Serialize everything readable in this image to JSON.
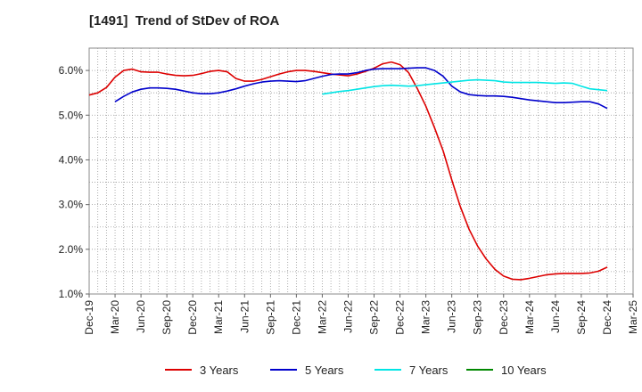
{
  "chart_data": {
    "type": "line",
    "title": "[1491]  Trend of StDev of ROA",
    "xlabel": "",
    "ylabel": "",
    "ylim": [
      1.0,
      6.5
    ],
    "yticks": [
      "1.0%",
      "2.0%",
      "3.0%",
      "4.0%",
      "5.0%",
      "6.0%"
    ],
    "x_tick_labels": [
      "Dec-19",
      "Mar-20",
      "Jun-20",
      "Sep-20",
      "Dec-20",
      "Mar-21",
      "Jun-21",
      "Sep-21",
      "Dec-21",
      "Mar-22",
      "Jun-22",
      "Sep-22",
      "Dec-22",
      "Mar-23",
      "Jun-23",
      "Sep-23",
      "Dec-23",
      "Mar-24",
      "Jun-24",
      "Sep-24",
      "Dec-24",
      "Mar-25"
    ],
    "grid": true,
    "legend_position": "bottom",
    "series": [
      {
        "name": "3 Years",
        "color": "#dd0000",
        "values": [
          [
            "Dec-19",
            5.45
          ],
          [
            "Jan-20",
            5.5
          ],
          [
            "Feb-20",
            5.62
          ],
          [
            "Mar-20",
            5.85
          ],
          [
            "Apr-20",
            6.0
          ],
          [
            "May-20",
            6.03
          ],
          [
            "Jun-20",
            5.97
          ],
          [
            "Jul-20",
            5.96
          ],
          [
            "Aug-20",
            5.96
          ],
          [
            "Sep-20",
            5.92
          ],
          [
            "Oct-20",
            5.89
          ],
          [
            "Nov-20",
            5.88
          ],
          [
            "Dec-20",
            5.89
          ],
          [
            "Jan-21",
            5.93
          ],
          [
            "Feb-21",
            5.98
          ],
          [
            "Mar-21",
            6.0
          ],
          [
            "Apr-21",
            5.97
          ],
          [
            "May-21",
            5.82
          ],
          [
            "Jun-21",
            5.76
          ],
          [
            "Jul-21",
            5.76
          ],
          [
            "Aug-21",
            5.8
          ],
          [
            "Sep-21",
            5.86
          ],
          [
            "Oct-21",
            5.92
          ],
          [
            "Nov-21",
            5.97
          ],
          [
            "Dec-21",
            6.0
          ],
          [
            "Jan-22",
            6.0
          ],
          [
            "Feb-22",
            5.98
          ],
          [
            "Mar-22",
            5.95
          ],
          [
            "Apr-22",
            5.92
          ],
          [
            "May-22",
            5.9
          ],
          [
            "Jun-22",
            5.88
          ],
          [
            "Jul-22",
            5.92
          ],
          [
            "Aug-22",
            5.98
          ],
          [
            "Sep-22",
            6.05
          ],
          [
            "Oct-22",
            6.15
          ],
          [
            "Nov-22",
            6.19
          ],
          [
            "Dec-22",
            6.13
          ],
          [
            "Jan-23",
            5.95
          ],
          [
            "Feb-23",
            5.6
          ],
          [
            "Mar-23",
            5.2
          ],
          [
            "Apr-23",
            4.72
          ],
          [
            "May-23",
            4.2
          ],
          [
            "Jun-23",
            3.55
          ],
          [
            "Jul-23",
            2.95
          ],
          [
            "Aug-23",
            2.45
          ],
          [
            "Sep-23",
            2.07
          ],
          [
            "Oct-23",
            1.78
          ],
          [
            "Nov-23",
            1.55
          ],
          [
            "Dec-23",
            1.4
          ],
          [
            "Jan-24",
            1.33
          ],
          [
            "Feb-24",
            1.32
          ],
          [
            "Mar-24",
            1.35
          ],
          [
            "Apr-24",
            1.39
          ],
          [
            "May-24",
            1.43
          ],
          [
            "Jun-24",
            1.45
          ],
          [
            "Jul-24",
            1.46
          ],
          [
            "Aug-24",
            1.46
          ],
          [
            "Sep-24",
            1.46
          ],
          [
            "Oct-24",
            1.47
          ],
          [
            "Nov-24",
            1.51
          ],
          [
            "Dec-24",
            1.6
          ]
        ]
      },
      {
        "name": "5 Years",
        "color": "#0000cc",
        "values": [
          [
            "Mar-20",
            5.3
          ],
          [
            "Apr-20",
            5.42
          ],
          [
            "May-20",
            5.52
          ],
          [
            "Jun-20",
            5.58
          ],
          [
            "Jul-20",
            5.61
          ],
          [
            "Aug-20",
            5.61
          ],
          [
            "Sep-20",
            5.6
          ],
          [
            "Oct-20",
            5.58
          ],
          [
            "Nov-20",
            5.54
          ],
          [
            "Dec-20",
            5.5
          ],
          [
            "Jan-21",
            5.48
          ],
          [
            "Feb-21",
            5.48
          ],
          [
            "Mar-21",
            5.5
          ],
          [
            "Apr-21",
            5.54
          ],
          [
            "May-21",
            5.59
          ],
          [
            "Jun-21",
            5.65
          ],
          [
            "Jul-21",
            5.7
          ],
          [
            "Aug-21",
            5.74
          ],
          [
            "Sep-21",
            5.76
          ],
          [
            "Oct-21",
            5.77
          ],
          [
            "Nov-21",
            5.76
          ],
          [
            "Dec-21",
            5.75
          ],
          [
            "Jan-22",
            5.77
          ],
          [
            "Feb-22",
            5.82
          ],
          [
            "Mar-22",
            5.87
          ],
          [
            "Apr-22",
            5.91
          ],
          [
            "May-22",
            5.92
          ],
          [
            "Jun-22",
            5.92
          ],
          [
            "Jul-22",
            5.95
          ],
          [
            "Aug-22",
            6.0
          ],
          [
            "Sep-22",
            6.03
          ],
          [
            "Oct-22",
            6.04
          ],
          [
            "Nov-22",
            6.04
          ],
          [
            "Dec-22",
            6.04
          ],
          [
            "Jan-23",
            6.05
          ],
          [
            "Feb-23",
            6.06
          ],
          [
            "Mar-23",
            6.06
          ],
          [
            "Apr-23",
            6.0
          ],
          [
            "May-23",
            5.87
          ],
          [
            "Jun-23",
            5.65
          ],
          [
            "Jul-23",
            5.52
          ],
          [
            "Aug-23",
            5.46
          ],
          [
            "Sep-23",
            5.44
          ],
          [
            "Oct-23",
            5.43
          ],
          [
            "Nov-23",
            5.43
          ],
          [
            "Dec-23",
            5.42
          ],
          [
            "Jan-24",
            5.4
          ],
          [
            "Feb-24",
            5.37
          ],
          [
            "Mar-24",
            5.34
          ],
          [
            "Apr-24",
            5.32
          ],
          [
            "May-24",
            5.3
          ],
          [
            "Jun-24",
            5.28
          ],
          [
            "Jul-24",
            5.28
          ],
          [
            "Aug-24",
            5.29
          ],
          [
            "Sep-24",
            5.3
          ],
          [
            "Oct-24",
            5.3
          ],
          [
            "Nov-24",
            5.25
          ],
          [
            "Dec-24",
            5.15
          ]
        ]
      },
      {
        "name": "7 Years",
        "color": "#00e5e5",
        "values": [
          [
            "Mar-22",
            5.47
          ],
          [
            "Apr-22",
            5.5
          ],
          [
            "May-22",
            5.53
          ],
          [
            "Jun-22",
            5.55
          ],
          [
            "Jul-22",
            5.58
          ],
          [
            "Aug-22",
            5.61
          ],
          [
            "Sep-22",
            5.64
          ],
          [
            "Oct-22",
            5.66
          ],
          [
            "Nov-22",
            5.67
          ],
          [
            "Dec-22",
            5.66
          ],
          [
            "Jan-23",
            5.65
          ],
          [
            "Feb-23",
            5.66
          ],
          [
            "Mar-23",
            5.68
          ],
          [
            "Apr-23",
            5.7
          ],
          [
            "May-23",
            5.72
          ],
          [
            "Jun-23",
            5.74
          ],
          [
            "Jul-23",
            5.76
          ],
          [
            "Aug-23",
            5.78
          ],
          [
            "Sep-23",
            5.79
          ],
          [
            "Oct-23",
            5.78
          ],
          [
            "Nov-23",
            5.77
          ],
          [
            "Dec-23",
            5.74
          ],
          [
            "Jan-24",
            5.73
          ],
          [
            "Feb-24",
            5.73
          ],
          [
            "Mar-24",
            5.73
          ],
          [
            "Apr-24",
            5.73
          ],
          [
            "May-24",
            5.72
          ],
          [
            "Jun-24",
            5.71
          ],
          [
            "Jul-24",
            5.72
          ],
          [
            "Aug-24",
            5.71
          ],
          [
            "Sep-24",
            5.65
          ],
          [
            "Oct-24",
            5.59
          ],
          [
            "Nov-24",
            5.57
          ],
          [
            "Dec-24",
            5.55
          ]
        ]
      },
      {
        "name": "10 Years",
        "color": "#008800",
        "values": []
      }
    ]
  }
}
